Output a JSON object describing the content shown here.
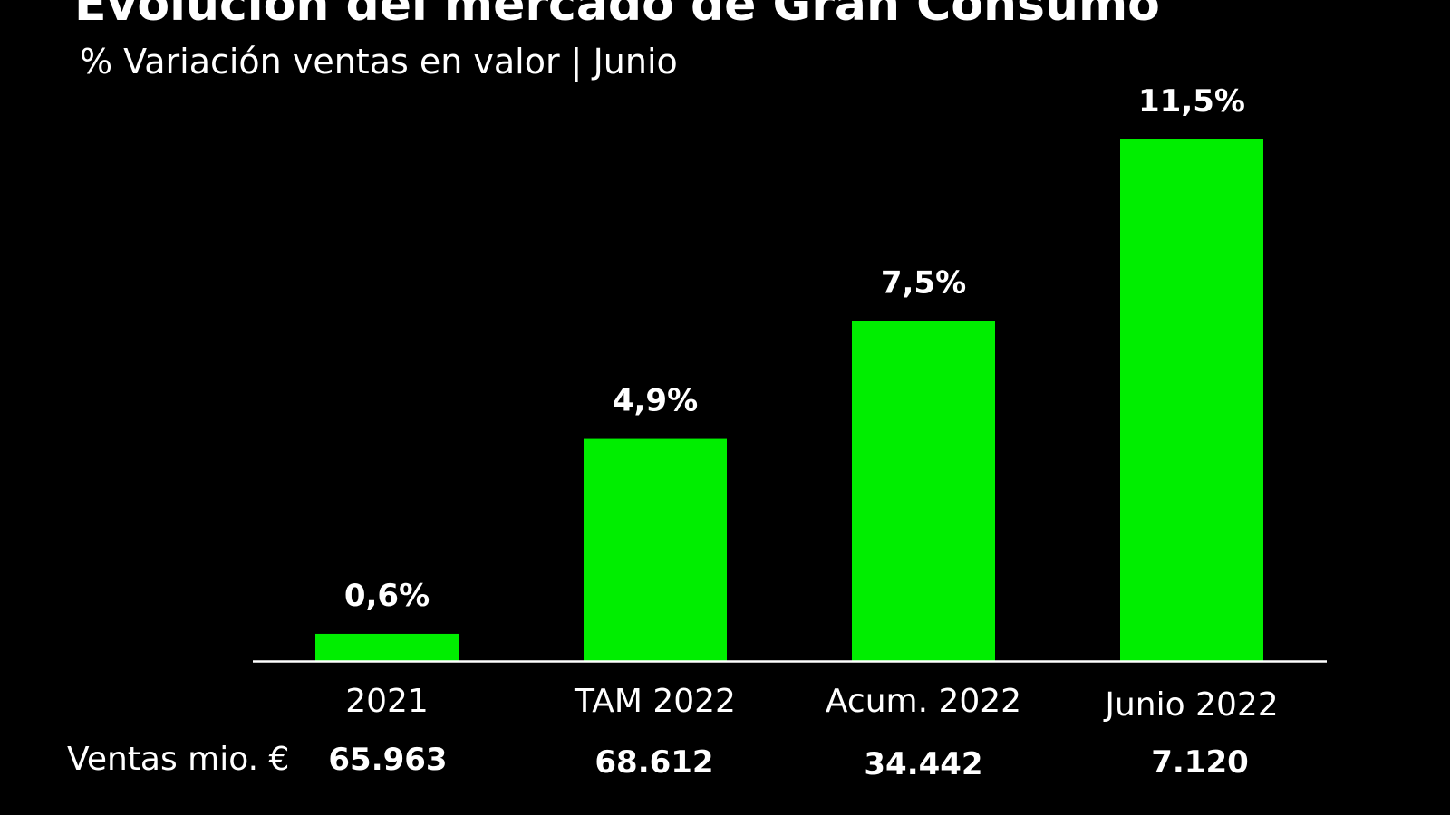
{
  "chart_data": {
    "type": "bar",
    "title": "Evolución del mercado de Gran Consumo",
    "subtitle": "% Variación ventas en valor | Junio",
    "categories": [
      "2021",
      "TAM 2022",
      "Acum. 2022",
      "Junio 2022"
    ],
    "values": [
      0.6,
      4.9,
      7.5,
      11.5
    ],
    "value_labels": [
      "0,6%",
      "4,9%",
      "7,5%",
      "11,5%"
    ],
    "ylim": [
      0,
      11.5
    ],
    "bar_color": "#00ee00",
    "axis_color": "#ffffff",
    "grid": false,
    "sales_label": "Ventas mio. €",
    "sales_values": [
      "65.963",
      "68.612",
      "34.442",
      "7.120"
    ]
  }
}
